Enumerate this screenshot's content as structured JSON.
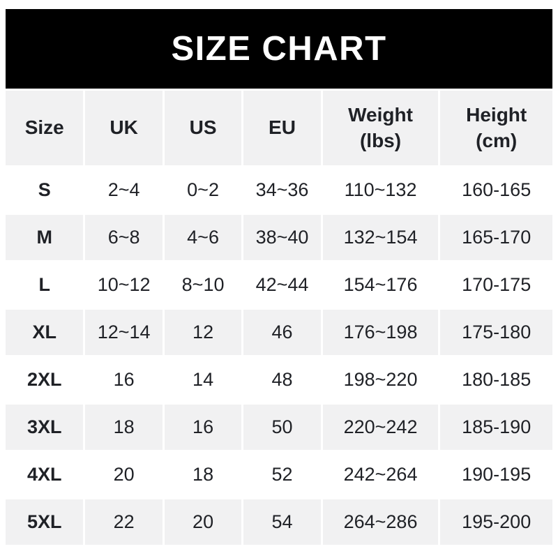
{
  "title": "SIZE CHART",
  "colors": {
    "banner_bg": "#000000",
    "banner_text": "#ffffff",
    "row_shade_bg": "#f1f1f2",
    "row_plain_bg": "#ffffff",
    "text": "#1f2126"
  },
  "chart_data": {
    "type": "table",
    "title": "SIZE CHART",
    "columns": [
      "Size",
      "UK",
      "US",
      "EU",
      "Weight\n(lbs)",
      "Height\n(cm)"
    ],
    "rows": [
      [
        "S",
        "2~4",
        "0~2",
        "34~36",
        "110~132",
        "160-165"
      ],
      [
        "M",
        "6~8",
        "4~6",
        "38~40",
        "132~154",
        "165-170"
      ],
      [
        "L",
        "10~12",
        "8~10",
        "42~44",
        "154~176",
        "170-175"
      ],
      [
        "XL",
        "12~14",
        "12",
        "46",
        "176~198",
        "175-180"
      ],
      [
        "2XL",
        "16",
        "14",
        "48",
        "198~220",
        "180-185"
      ],
      [
        "3XL",
        "18",
        "16",
        "50",
        "220~242",
        "185-190"
      ],
      [
        "4XL",
        "20",
        "18",
        "52",
        "242~264",
        "190-195"
      ],
      [
        "5XL",
        "22",
        "20",
        "54",
        "264~286",
        "195-200"
      ]
    ]
  }
}
